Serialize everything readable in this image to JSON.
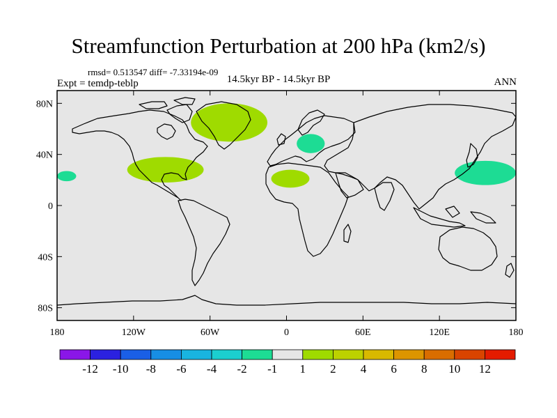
{
  "title": "Streamfunction Perturbation at 200 hPa (km2/s)",
  "stats_line": "rmsd= 0.513547 diff= -7.33194e-09",
  "experiment": "Expt = temdp-teblp",
  "period": "14.5kyr BP - 14.5kyr BP",
  "season": "ANN",
  "colors": {
    "ocean_land_background": "#e6e6e6",
    "coastline": "#000000"
  },
  "map": {
    "projection": "cylindrical equidistant",
    "lon_range": [
      -180,
      180
    ],
    "lat_range": [
      -90,
      90
    ],
    "lat_ticks": [
      {
        "lat": 80,
        "label": "80N"
      },
      {
        "lat": 40,
        "label": "40N"
      },
      {
        "lat": 0,
        "label": "0"
      },
      {
        "lat": -40,
        "label": "40S"
      },
      {
        "lat": -80,
        "label": "80S"
      }
    ],
    "lon_ticks": [
      {
        "lon": -180,
        "label": "180"
      },
      {
        "lon": -120,
        "label": "120W"
      },
      {
        "lon": -60,
        "label": "60W"
      },
      {
        "lon": 0,
        "label": "0"
      },
      {
        "lon": 60,
        "label": "60E"
      },
      {
        "lon": 120,
        "label": "120E"
      },
      {
        "lon": 180,
        "label": "180"
      }
    ]
  },
  "anomaly_patches": [
    {
      "name": "north-atlantic-greenland",
      "sign": "positive",
      "level": "1 to 2",
      "color": "#9fdb00",
      "lon_range": [
        -75,
        -15
      ],
      "lat_range": [
        50,
        80
      ]
    },
    {
      "name": "north-america-gulf",
      "sign": "positive",
      "level": "1 to 2",
      "color": "#9fdb00",
      "lon_range": [
        -125,
        -65
      ],
      "lat_range": [
        18,
        38
      ]
    },
    {
      "name": "north-africa",
      "sign": "positive",
      "level": "1 to 2",
      "color": "#9fdb00",
      "lon_range": [
        -12,
        18
      ],
      "lat_range": [
        14,
        28
      ]
    },
    {
      "name": "europe",
      "sign": "negative",
      "level": "-2 to -1",
      "color": "#1ddc94",
      "lon_range": [
        8,
        30
      ],
      "lat_range": [
        41,
        56
      ]
    },
    {
      "name": "northwest-pacific",
      "sign": "negative",
      "level": "-2 to -1",
      "color": "#1ddc94",
      "lon_range": [
        132,
        180
      ],
      "lat_range": [
        16,
        35
      ]
    },
    {
      "name": "dateline-pacific-east",
      "sign": "negative",
      "level": "-2 to -1",
      "color": "#1ddc94",
      "lon_range": [
        -180,
        -165
      ],
      "lat_range": [
        19,
        27
      ]
    }
  ],
  "colorbar": {
    "colors": [
      "#8a16e8",
      "#2b21e0",
      "#1a5fe6",
      "#178ee4",
      "#19b4e0",
      "#1bcfcf",
      "#1ddc94",
      "#e6e6e6",
      "#9fdb00",
      "#bcd200",
      "#d8b900",
      "#dc9500",
      "#d96d00",
      "#d94400",
      "#e41b00"
    ],
    "labels": [
      "-12",
      "-10",
      "-8",
      "-6",
      "-4",
      "-2",
      "-1",
      "1",
      "2",
      "4",
      "6",
      "8",
      "10",
      "12"
    ]
  }
}
